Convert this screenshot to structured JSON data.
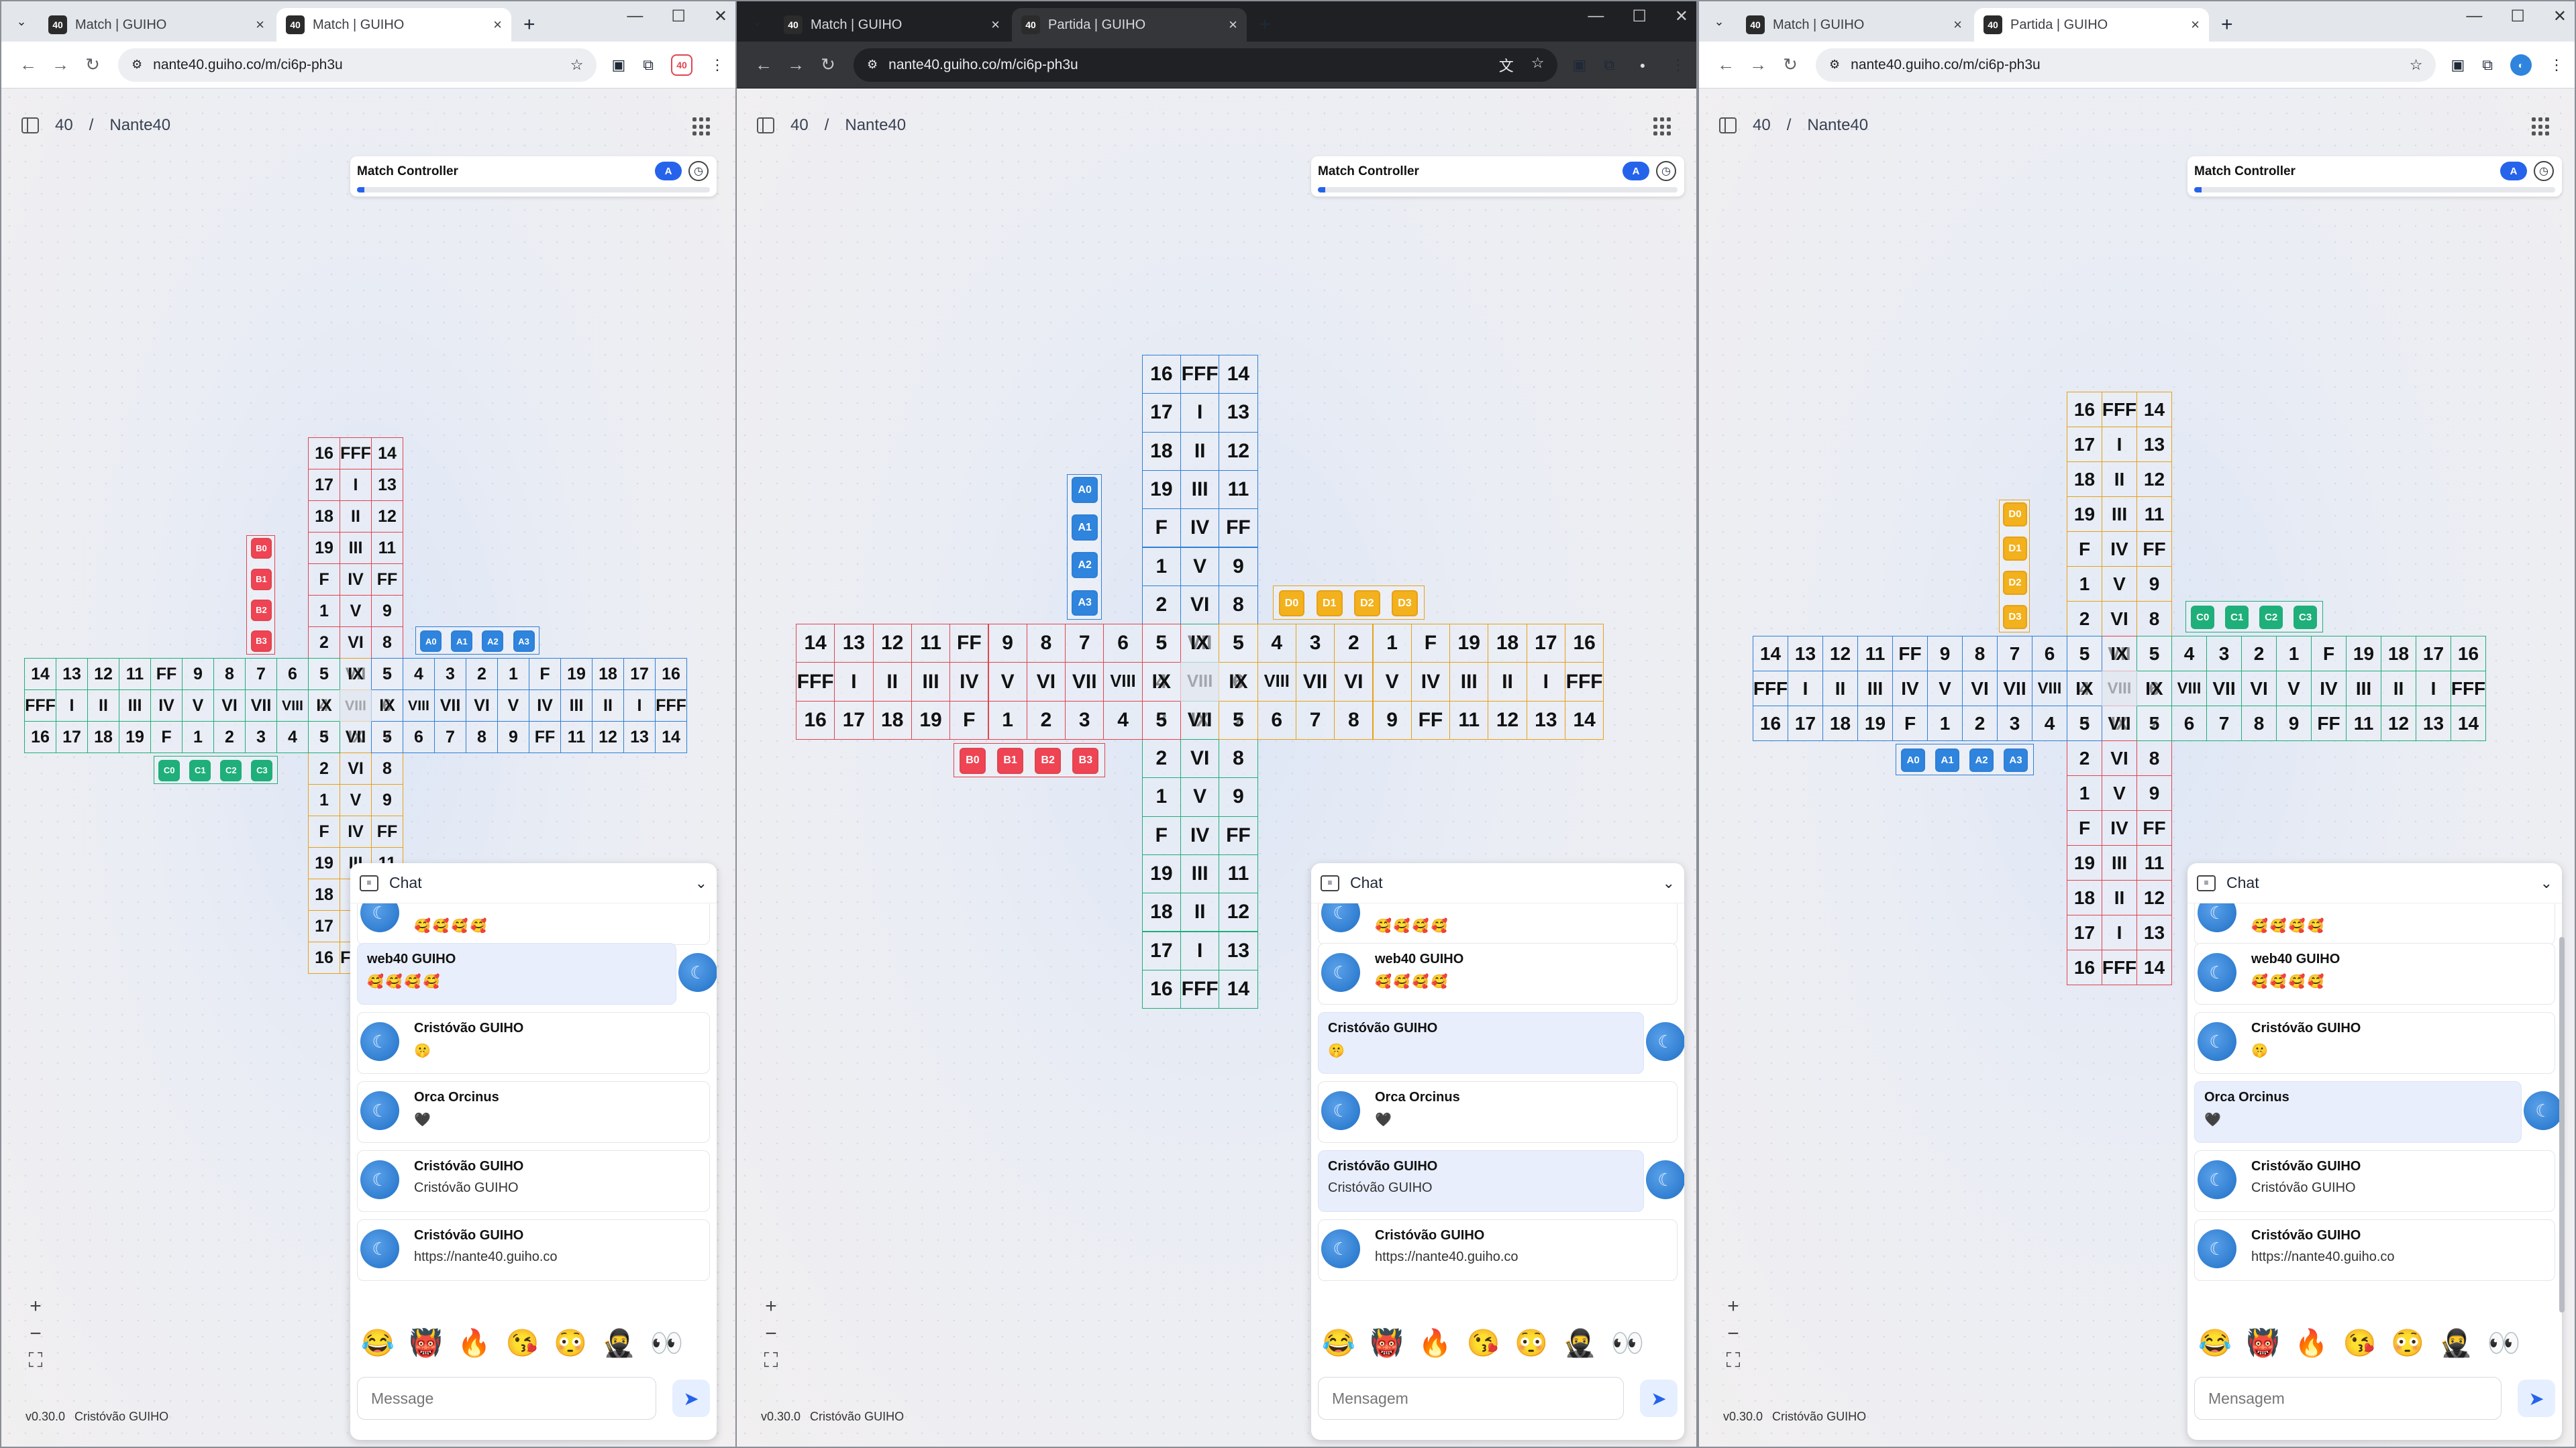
{
  "windows": [
    {
      "id": "w1",
      "theme": "light",
      "tabs": [
        {
          "label": "Match | GUIHO",
          "favicon": "40",
          "active": false
        },
        {
          "label": "Match | GUIHO",
          "favicon": "40",
          "active": true
        }
      ],
      "url": "nante40.guiho.co/m/ci6p-ph3u",
      "translate_icon": false,
      "match_controller": {
        "title": "Match Controller",
        "badge": "A",
        "progress": 0.02
      },
      "chat": {
        "emoji_bar_scrolled": true,
        "input_placeholder": "Message"
      }
    },
    {
      "id": "w2",
      "theme": "dark",
      "tabs": [
        {
          "label": "Match | GUIHO",
          "favicon": "40",
          "active": false
        },
        {
          "label": "Partida | GUIHO",
          "favicon": "40",
          "active": true
        }
      ],
      "url": "nante40.guiho.co/m/ci6p-ph3u",
      "translate_icon": true,
      "match_controller": {
        "title": "Match Controller",
        "badge": "A",
        "progress": 0.02
      },
      "chat": {
        "emoji_bar_scrolled": false,
        "input_placeholder": "Mensagem"
      }
    },
    {
      "id": "w3",
      "theme": "light",
      "tabs": [
        {
          "label": "Match | GUIHO",
          "favicon": "40",
          "active": false
        },
        {
          "label": "Partida | GUIHO",
          "favicon": "40",
          "active": true
        }
      ],
      "url": "nante40.guiho.co/m/ci6p-ph3u",
      "translate_icon": false,
      "match_controller": {
        "title": "Match Controller",
        "badge": "A",
        "progress": 0.02
      },
      "chat": {
        "emoji_bar_scrolled": false,
        "input_placeholder": "Mensagem"
      }
    }
  ],
  "breadcrumb": {
    "root": "40",
    "separator": "/",
    "page": "Nante40"
  },
  "footer": {
    "version": "v0.30.0",
    "user": "Cristóvão GUIHO"
  },
  "chat": {
    "title": "Chat",
    "messages": [
      {
        "author": "",
        "text": "🥰🥰🥰🥰",
        "emoji": true
      },
      {
        "author": "web40 GUIHO",
        "text": "🥰🥰🥰🥰",
        "emoji": true
      },
      {
        "author": "Cristóvão GUIHO",
        "text": "🤫",
        "emoji": true
      },
      {
        "author": "Orca Orcinus",
        "text": "🖤",
        "emoji": true
      },
      {
        "author": "Cristóvão GUIHO",
        "text": "Cristóvão GUIHO",
        "emoji": false
      },
      {
        "author": "Cristóvão GUIHO",
        "text": "https://nante40.guiho.co",
        "emoji": false
      }
    ],
    "mine_by_window": [
      [
        1
      ],
      [
        2,
        4
      ],
      [
        3
      ]
    ],
    "emoji_bar": [
      "😂",
      "👹",
      "🔥",
      "😘",
      "😳",
      "🥷",
      "👀"
    ]
  },
  "colors": {
    "red": "#e0454f",
    "blue": "#2f7fd6",
    "green": "#1fae79",
    "yellow": "#e6a117",
    "red_fill": "#ef4454",
    "blue_fill": "#2f84dd",
    "green_fill": "#1faf7a",
    "yellow_fill": "#f2b11d",
    "accent": "#2563eb"
  },
  "board": {
    "arm_long": [
      "16",
      "17",
      "18",
      "19",
      "F",
      "1",
      "2",
      "3",
      "4",
      "5"
    ],
    "arm_mid": [
      "FFF",
      "I",
      "II",
      "III",
      "IV",
      "V",
      "VI",
      "VII",
      "VIII",
      "IX"
    ],
    "arm_short": [
      "14",
      "13",
      "12",
      "11",
      "FF",
      "9",
      "8",
      "7",
      "6",
      "5"
    ],
    "pieces": {
      "A": [
        "A0",
        "A1",
        "A2",
        "A3"
      ],
      "B": [
        "B0",
        "B1",
        "B2",
        "B3"
      ],
      "C": [
        "C0",
        "C1",
        "C2",
        "C3"
      ],
      "D": [
        "D0",
        "D1",
        "D2",
        "D3"
      ]
    },
    "views": [
      {
        "colors": {
          "top": "red",
          "left": "green",
          "right": "blue",
          "bottom": "yellow"
        },
        "pieces": {
          "top": "B",
          "right": "A",
          "left": "C"
        }
      },
      {
        "colors": {
          "top": "blue",
          "left": "red",
          "right": "yellow",
          "bottom": "green"
        },
        "pieces": {
          "top": "A",
          "right": "D",
          "left": "B"
        }
      },
      {
        "colors": {
          "top": "yellow",
          "left": "blue",
          "right": "green",
          "bottom": "red"
        },
        "pieces": {
          "top": "D",
          "right": "C",
          "left": "A"
        }
      }
    ]
  }
}
